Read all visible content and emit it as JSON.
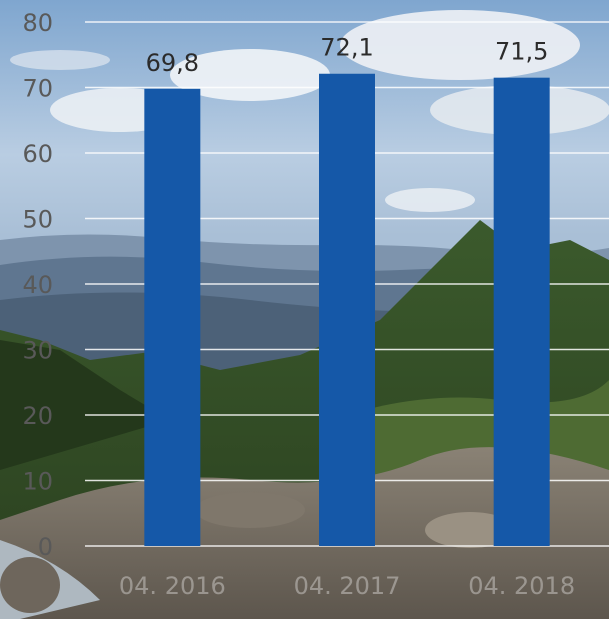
{
  "chart_data": {
    "type": "bar",
    "categories": [
      "04. 2016",
      "04. 2017",
      "04. 2018"
    ],
    "values": [
      69.8,
      72.1,
      71.5
    ],
    "value_labels": [
      "69,8",
      "72,1",
      "71,5"
    ],
    "title": "",
    "xlabel": "",
    "ylabel": "",
    "ylim": [
      0,
      80
    ],
    "yticks": [
      0,
      10,
      20,
      30,
      40,
      50,
      60,
      70,
      80
    ],
    "grid": true,
    "bar_color": "#1558a8",
    "background": "landscape photo: forested hills, rocky stream, cloudy sky"
  }
}
